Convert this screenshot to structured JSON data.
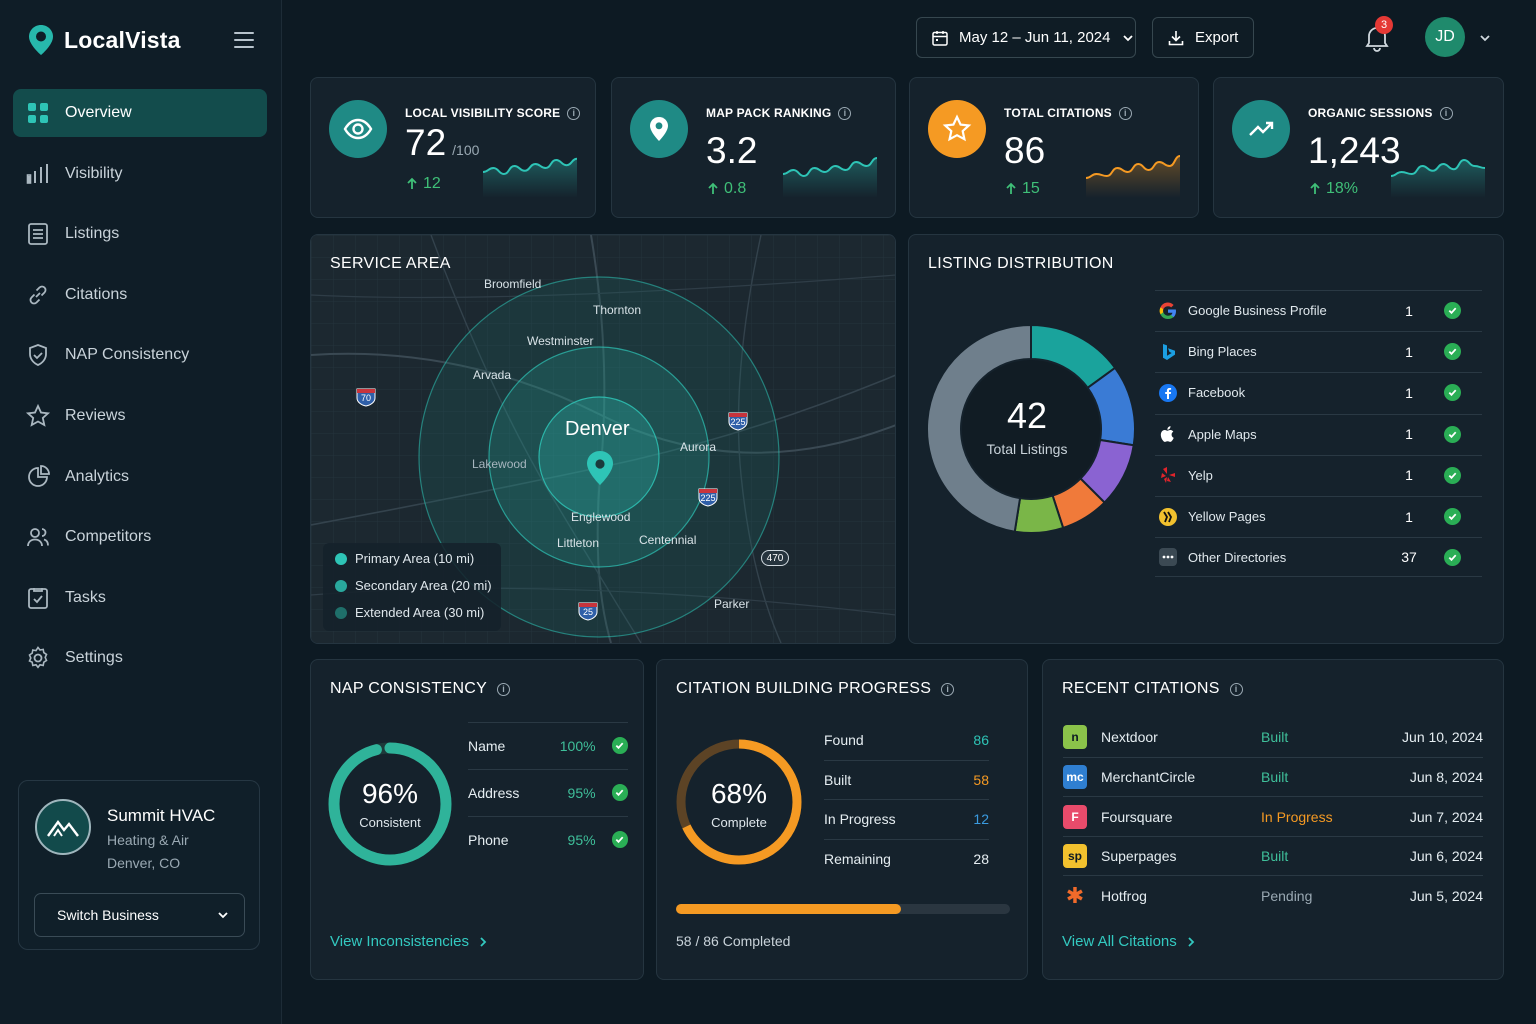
{
  "app": {
    "name": "LocalVista"
  },
  "nav": [
    {
      "label": "Overview",
      "icon": "grid-icon",
      "active": true
    },
    {
      "label": "Visibility",
      "icon": "bar-chart-icon"
    },
    {
      "label": "Listings",
      "icon": "list-icon"
    },
    {
      "label": "Citations",
      "icon": "link-icon"
    },
    {
      "label": "NAP Consistency",
      "icon": "shield-check-icon"
    },
    {
      "label": "Reviews",
      "icon": "star-icon"
    },
    {
      "label": "Analytics",
      "icon": "pie-chart-icon"
    },
    {
      "label": "Competitors",
      "icon": "users-icon"
    },
    {
      "label": "Tasks",
      "icon": "clipboard-check-icon"
    },
    {
      "label": "Settings",
      "icon": "gear-icon"
    }
  ],
  "business": {
    "name": "Summit HVAC",
    "category": "Heating & Air",
    "location": "Denver, CO",
    "switch_label": "Switch Business"
  },
  "topbar": {
    "date_range": "May 12 – Jun 11, 2024",
    "export_label": "Export",
    "notifications": "3",
    "user_initials": "JD"
  },
  "kpis": [
    {
      "label": "LOCAL VISIBILITY SCORE",
      "value": "72",
      "unit": "/100",
      "delta": "12",
      "color": "#1f8a85",
      "icon": "eye-icon",
      "spark": [
        0.45,
        0.35,
        0.5,
        0.3,
        0.42,
        0.25,
        0.35,
        0.15,
        0.28,
        0.12
      ],
      "spark_color": "#2ec4b6"
    },
    {
      "label": "MAP PACK RANKING",
      "value": "3.2",
      "unit": "",
      "delta": "0.8",
      "color": "#1f8a85",
      "icon": "map-pin-icon",
      "spark": [
        0.5,
        0.4,
        0.55,
        0.35,
        0.45,
        0.3,
        0.4,
        0.2,
        0.3,
        0.1
      ],
      "spark_color": "#2ec4b6"
    },
    {
      "label": "TOTAL CITATIONS",
      "value": "86",
      "unit": "",
      "delta": "15",
      "color": "#f59a23",
      "icon": "star-icon",
      "spark": [
        0.6,
        0.5,
        0.55,
        0.35,
        0.45,
        0.25,
        0.4,
        0.2,
        0.3,
        0.05
      ],
      "spark_color": "#f59a23"
    },
    {
      "label": "ORGANIC SESSIONS",
      "value": "1,243",
      "unit": "",
      "delta": "18%",
      "color": "#1f8a85",
      "icon": "trending-up-icon",
      "spark": [
        0.55,
        0.45,
        0.5,
        0.3,
        0.42,
        0.25,
        0.38,
        0.15,
        0.3,
        0.35
      ],
      "spark_color": "#2ec4b6"
    }
  ],
  "service_area": {
    "title": "SERVICE AREA",
    "center": "Denver",
    "places": [
      "Broomfield",
      "Thornton",
      "Westminster",
      "Arvada",
      "Lakewood",
      "Aurora",
      "Englewood",
      "Littleton",
      "Centennial",
      "Parker"
    ],
    "highways": [
      "70",
      "225",
      "225",
      "470",
      "25"
    ],
    "legend": [
      {
        "label": "Primary Area (10 mi)",
        "color": "#2ec4b6"
      },
      {
        "label": "Secondary Area (20 mi)",
        "color": "#29a89d"
      },
      {
        "label": "Extended Area (30 mi)",
        "color": "#1f6f6a"
      }
    ]
  },
  "listing_distribution": {
    "title": "LISTING DISTRIBUTION",
    "total": "42",
    "total_label": "Total Listings",
    "rows": [
      {
        "name": "Google Business Profile",
        "count": 1,
        "icon": "google-icon",
        "color": "#1aa39c"
      },
      {
        "name": "Bing Places",
        "count": 1,
        "icon": "bing-icon",
        "color": "#3a7bd5"
      },
      {
        "name": "Facebook",
        "count": 1,
        "icon": "facebook-icon",
        "color": "#8a63d2"
      },
      {
        "name": "Apple Maps",
        "count": 1,
        "icon": "apple-icon",
        "color": "#f07a3a"
      },
      {
        "name": "Yelp",
        "count": 1,
        "icon": "yelp-icon",
        "color": "#7ab648"
      },
      {
        "name": "Yellow Pages",
        "count": 1,
        "icon": "yellow-pages-icon",
        "color": "#e8c22d"
      },
      {
        "name": "Other Directories",
        "count": 37,
        "icon": "more-icon",
        "color": "#6f7f8c"
      }
    ]
  },
  "nap": {
    "title": "NAP CONSISTENCY",
    "percent": 0.96,
    "percent_label": "96%",
    "sub": "Consistent",
    "rows": [
      {
        "label": "Name",
        "value": "100%"
      },
      {
        "label": "Address",
        "value": "95%"
      },
      {
        "label": "Phone",
        "value": "95%"
      }
    ],
    "link": "View Inconsistencies"
  },
  "citation_progress": {
    "title": "CITATION BUILDING PROGRESS",
    "percent": 0.68,
    "percent_label": "68%",
    "sub": "Complete",
    "rows": [
      {
        "label": "Found",
        "value": "86",
        "color": "#2ec4b6"
      },
      {
        "label": "Built",
        "value": "58",
        "color": "#f59a23"
      },
      {
        "label": "In Progress",
        "value": "12",
        "color": "#3a9be0"
      },
      {
        "label": "Remaining",
        "value": "28",
        "color": "#e5edf1"
      }
    ],
    "bar_fraction": 0.674,
    "bar_label": "58 / 86 Completed"
  },
  "recent_citations": {
    "title": "RECENT CITATIONS",
    "rows": [
      {
        "name": "Nextdoor",
        "status": "Built",
        "date": "Jun 10, 2024",
        "logo": "n",
        "logo_bg": "#8bc34a",
        "logo_fg": "#0d1a23",
        "status_color": "#3fbf9a",
        "icon": "nextdoor-icon"
      },
      {
        "name": "MerchantCircle",
        "status": "Built",
        "date": "Jun 8, 2024",
        "logo": "mc",
        "logo_bg": "#2f7fd1",
        "logo_fg": "#ffffff",
        "status_color": "#3fbf9a",
        "icon": "merchantcircle-icon"
      },
      {
        "name": "Foursquare",
        "status": "In Progress",
        "date": "Jun 7, 2024",
        "logo": "F",
        "logo_bg": "#e84b6b",
        "logo_fg": "#ffffff",
        "status_color": "#f59a23",
        "icon": "foursquare-icon"
      },
      {
        "name": "Superpages",
        "status": "Built",
        "date": "Jun 6, 2024",
        "logo": "sp",
        "logo_bg": "#f2c12e",
        "logo_fg": "#0d1a23",
        "status_color": "#3fbf9a",
        "icon": "superpages-icon"
      },
      {
        "name": "Hotfrog",
        "status": "Pending",
        "date": "Jun 5, 2024",
        "logo": "✱",
        "logo_bg": "transparent",
        "logo_fg": "#f06a2a",
        "status_color": "#9aa9b3",
        "icon": "hotfrog-icon"
      }
    ],
    "link": "View All Citations"
  }
}
